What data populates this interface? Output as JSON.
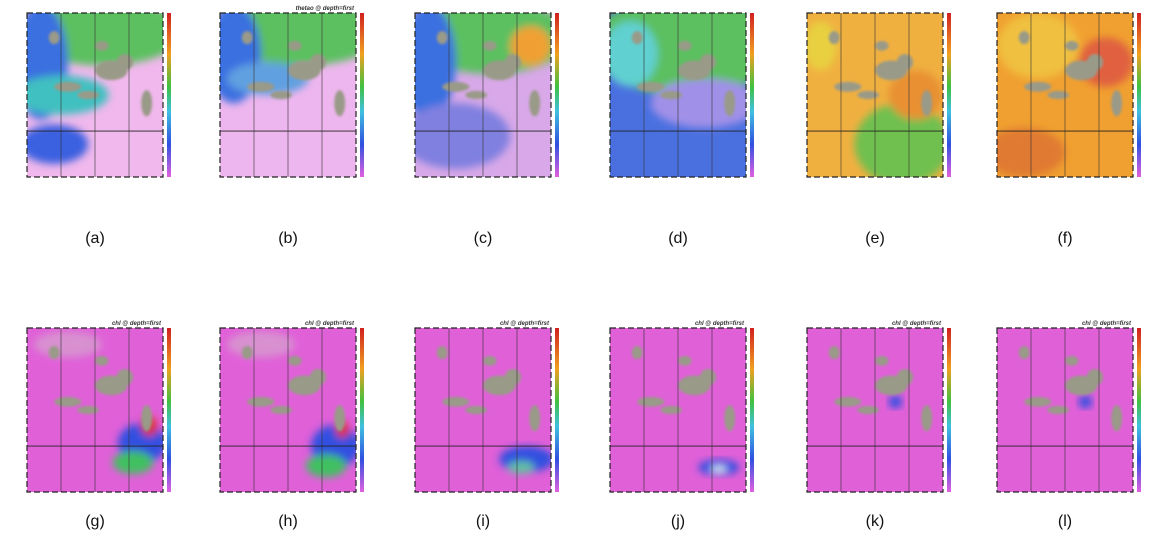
{
  "panels": [
    {
      "caption": "(a)"
    },
    {
      "caption": "(b)",
      "title": "thetao @ depth=first"
    },
    {
      "caption": "(c)"
    },
    {
      "caption": "(d)"
    },
    {
      "caption": "(e)"
    },
    {
      "caption": "(f)"
    },
    {
      "caption": "(g)",
      "title": "chl @ depth=first"
    },
    {
      "caption": "(h)",
      "title": "chl @ depth=first"
    },
    {
      "caption": "(i)",
      "title": "chl @ depth=first"
    },
    {
      "caption": "(j)",
      "title": "chl @ depth=first"
    },
    {
      "caption": "(k)",
      "title": "chl @ depth=first"
    },
    {
      "caption": "(l)",
      "title": "chl @ depth=first"
    }
  ]
}
